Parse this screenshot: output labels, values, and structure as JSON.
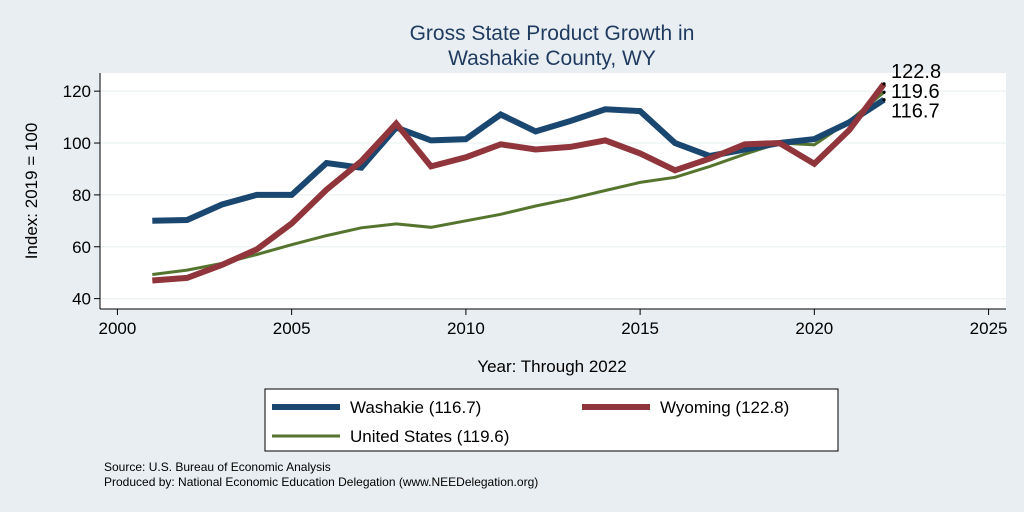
{
  "chart_data": {
    "type": "line",
    "title": [
      "Gross State Product Growth in",
      "Washakie County, WY"
    ],
    "xlabel": "Year: Through 2022",
    "ylabel": "Index: 2019 = 100",
    "xlim": [
      1999.5,
      2025.5
    ],
    "ylim": [
      36,
      127
    ],
    "x_ticks": [
      2000,
      2005,
      2010,
      2015,
      2020,
      2025
    ],
    "y_ticks": [
      40,
      60,
      80,
      100,
      120
    ],
    "grid": "horizontal",
    "legend_position": "bottom",
    "x": [
      2001,
      2002,
      2003,
      2004,
      2005,
      2006,
      2007,
      2008,
      2009,
      2010,
      2011,
      2012,
      2013,
      2014,
      2015,
      2016,
      2017,
      2018,
      2019,
      2020,
      2021,
      2022
    ],
    "series": [
      {
        "name": "Washakie  (116.7)",
        "color": "#1a476f",
        "width": 6,
        "values": [
          70,
          70.3,
          76.3,
          80,
          80,
          92.3,
          90.5,
          106,
          101,
          101.5,
          111,
          104.5,
          108.5,
          113,
          112.3,
          100,
          95,
          97.5,
          100,
          101.5,
          108,
          116.7
        ]
      },
      {
        "name": "Wyoming (122.8)",
        "color": "#90353b",
        "width": 6,
        "values": [
          47,
          48,
          53,
          59,
          69,
          82,
          93,
          107.5,
          91,
          94.5,
          99.5,
          97.5,
          98.5,
          101,
          96,
          89.5,
          94,
          99.5,
          100,
          92,
          105,
          122.8
        ]
      },
      {
        "name": "United States (119.6)",
        "color": "#55752f",
        "width": 3,
        "values": [
          49.3,
          51,
          53.6,
          57,
          60.8,
          64.3,
          67.3,
          68.8,
          67.5,
          70,
          72.5,
          75.7,
          78.5,
          81.7,
          84.8,
          86.8,
          91,
          95.7,
          100,
          99.3,
          108.5,
          119.6
        ]
      }
    ],
    "end_labels": [
      "122.8",
      "119.6",
      "116.7"
    ]
  },
  "source": {
    "line1": "Source: U.S. Bureau of Economic Analysis",
    "line2": "Produced by: National Economic Education Delegation (www.NEEDelegation.org)"
  }
}
